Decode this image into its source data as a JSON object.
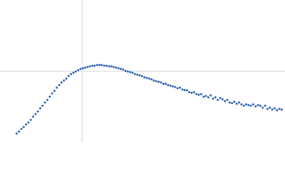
{
  "chart_data": {
    "type": "scatter",
    "color": "#3566b3",
    "xlim": [
      0,
      6.02
    ],
    "ylim": [
      0,
      2.208
    ],
    "reference_lines": {
      "x": 1.732,
      "y": 1.104,
      "color": "#d0d4dc"
    },
    "x": [
      0.35,
      0.4,
      0.45,
      0.5,
      0.55,
      0.6,
      0.65,
      0.7,
      0.75,
      0.8,
      0.85,
      0.9,
      0.95,
      1.0,
      1.05,
      1.1,
      1.15,
      1.2,
      1.25,
      1.3,
      1.35,
      1.4,
      1.45,
      1.5,
      1.55,
      1.6,
      1.65,
      1.7,
      1.75,
      1.8,
      1.85,
      1.9,
      1.95,
      2.0,
      2.05,
      2.1,
      2.15,
      2.2,
      2.25,
      2.3,
      2.35,
      2.4,
      2.45,
      2.5,
      2.55,
      2.6,
      2.65,
      2.7,
      2.75,
      2.8,
      2.85,
      2.9,
      2.95,
      3.0,
      3.05,
      3.1,
      3.15,
      3.2,
      3.25,
      3.3,
      3.35,
      3.4,
      3.45,
      3.5,
      3.55,
      3.6,
      3.65,
      3.7,
      3.75,
      3.8,
      3.85,
      3.9,
      3.95,
      4.0,
      4.05,
      4.1,
      4.15,
      4.2,
      4.25,
      4.3,
      4.35,
      4.4,
      4.45,
      4.5,
      4.55,
      4.6,
      4.65,
      4.7,
      4.75,
      4.8,
      4.85,
      4.9,
      4.95,
      5.0,
      5.05,
      5.1,
      5.15,
      5.2,
      5.25,
      5.3,
      5.35,
      5.4,
      5.45,
      5.5,
      5.55,
      5.6,
      5.65,
      5.7,
      5.75,
      5.8,
      5.85,
      5.9,
      5.95
    ],
    "values": [
      0.14,
      0.17,
      0.21,
      0.24,
      0.28,
      0.31,
      0.35,
      0.4,
      0.44,
      0.48,
      0.53,
      0.57,
      0.62,
      0.66,
      0.71,
      0.76,
      0.8,
      0.85,
      0.89,
      0.93,
      0.96,
      0.99,
      1.03,
      1.06,
      1.08,
      1.1,
      1.12,
      1.14,
      1.15,
      1.16,
      1.17,
      1.18,
      1.19,
      1.19,
      1.2,
      1.2,
      1.2,
      1.19,
      1.19,
      1.18,
      1.18,
      1.17,
      1.16,
      1.15,
      1.14,
      1.13,
      1.11,
      1.1,
      1.09,
      1.08,
      1.06,
      1.05,
      1.04,
      1.03,
      1.01,
      1.0,
      0.99,
      0.98,
      0.96,
      0.95,
      0.94,
      0.93,
      0.91,
      0.91,
      0.89,
      0.88,
      0.87,
      0.86,
      0.84,
      0.85,
      0.82,
      0.81,
      0.81,
      0.78,
      0.77,
      0.78,
      0.75,
      0.74,
      0.75,
      0.71,
      0.72,
      0.7,
      0.73,
      0.68,
      0.7,
      0.66,
      0.69,
      0.67,
      0.64,
      0.66,
      0.62,
      0.61,
      0.63,
      0.6,
      0.62,
      0.59,
      0.57,
      0.59,
      0.58,
      0.57,
      0.59,
      0.56,
      0.58,
      0.57,
      0.54,
      0.57,
      0.52,
      0.54,
      0.51,
      0.53,
      0.5,
      0.52,
      0.51
    ]
  }
}
